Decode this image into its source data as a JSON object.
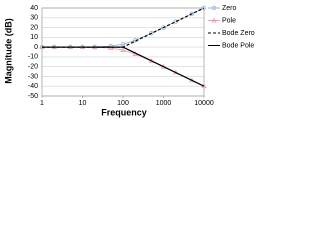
{
  "chart_data": {
    "type": "line",
    "xlabel": "Frequency",
    "ylabel": "Magnitude (dB)",
    "xscale": "log",
    "xlim": [
      1,
      10000
    ],
    "xticks": [
      1,
      10,
      100,
      1000,
      10000
    ],
    "ylim": [
      -50,
      40
    ],
    "yticks": [
      -50,
      -40,
      -30,
      -20,
      -10,
      0,
      10,
      20,
      30,
      40
    ],
    "grid": true,
    "legend": "right",
    "series": [
      {
        "name": "Zero",
        "color": "#8fb4dc",
        "marker": "circle",
        "dash": false,
        "x": [
          1,
          2,
          5,
          10,
          20,
          50,
          100,
          200,
          500,
          1000,
          2000,
          5000,
          10000
        ],
        "values": [
          0,
          0,
          0,
          0,
          0.2,
          1,
          3,
          7,
          14.2,
          20,
          26,
          34,
          40
        ]
      },
      {
        "name": "Pole",
        "color": "#e8a0a8",
        "marker": "triangle",
        "dash": false,
        "x": [
          1,
          2,
          5,
          10,
          20,
          50,
          100,
          200,
          500,
          1000,
          2000,
          5000,
          10000
        ],
        "values": [
          0,
          0,
          0,
          0,
          -0.2,
          -1,
          -3,
          -7,
          -14.2,
          -20,
          -26,
          -34,
          -40
        ]
      },
      {
        "name": "Bode Zero",
        "color": "#000000",
        "marker": "none",
        "dash": true,
        "x": [
          1,
          100,
          10000
        ],
        "values": [
          0,
          0,
          40
        ]
      },
      {
        "name": "Bode Pole",
        "color": "#000000",
        "marker": "none",
        "dash": false,
        "x": [
          1,
          100,
          10000
        ],
        "values": [
          0,
          0,
          -40
        ]
      }
    ]
  }
}
